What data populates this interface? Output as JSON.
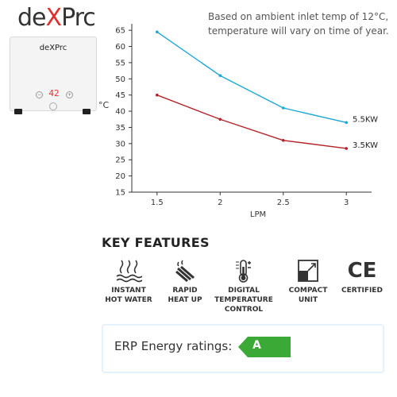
{
  "brand": {
    "logo_text_a": "de",
    "logo_text_b": "X",
    "logo_text_c": "Prc"
  },
  "heater": {
    "brand_label": "deXPrc",
    "display_value": "42",
    "minus_label": "−",
    "plus_label": "+"
  },
  "note": "Based on ambient inlet temp of 12°C,\ntemperature will vary on time of year.",
  "chart_data": {
    "type": "line",
    "x": [
      1.5,
      2,
      2.5,
      3
    ],
    "x_ticks": [
      "1.5",
      "2",
      "2.5",
      "3"
    ],
    "y_ticks": [
      "15",
      "20",
      "25",
      "30",
      "35",
      "40",
      "45",
      "50",
      "55",
      "60",
      "65"
    ],
    "xlim": [
      1.3,
      3.2
    ],
    "ylim": [
      15,
      67
    ],
    "xlabel": "LPM",
    "ylabel": "°C",
    "grid": false,
    "series": [
      {
        "name": "5.5KW",
        "values": [
          64.5,
          51,
          41,
          36.5
        ],
        "color": "#1ea7d6"
      },
      {
        "name": "3.5KW",
        "values": [
          45,
          37.5,
          31,
          28.5
        ],
        "color": "#b5232a"
      }
    ]
  },
  "features": {
    "title": "KEY FEATURES",
    "items": [
      {
        "label": "INSTANT\nHOT WATER",
        "icon": "hot-water-waves-icon"
      },
      {
        "label": "RAPID\nHEAT UP",
        "icon": "heating-element-icon"
      },
      {
        "label": "DIGITAL\nTEMPERATURE\nCONTROL",
        "icon": "thermometer-icon"
      },
      {
        "label": "COMPACT\nUNIT",
        "icon": "compact-unit-icon"
      },
      {
        "label": "CERTIFIED",
        "icon": "ce-mark-icon"
      }
    ],
    "ce_text": "CE"
  },
  "erp": {
    "label": "ERP Energy ratings:",
    "grade": "A",
    "badge_color": "#3aa935"
  },
  "colors": {
    "accent_red": "#e0302b",
    "border_blue": "#e6f2fb",
    "axis": "#333333"
  }
}
